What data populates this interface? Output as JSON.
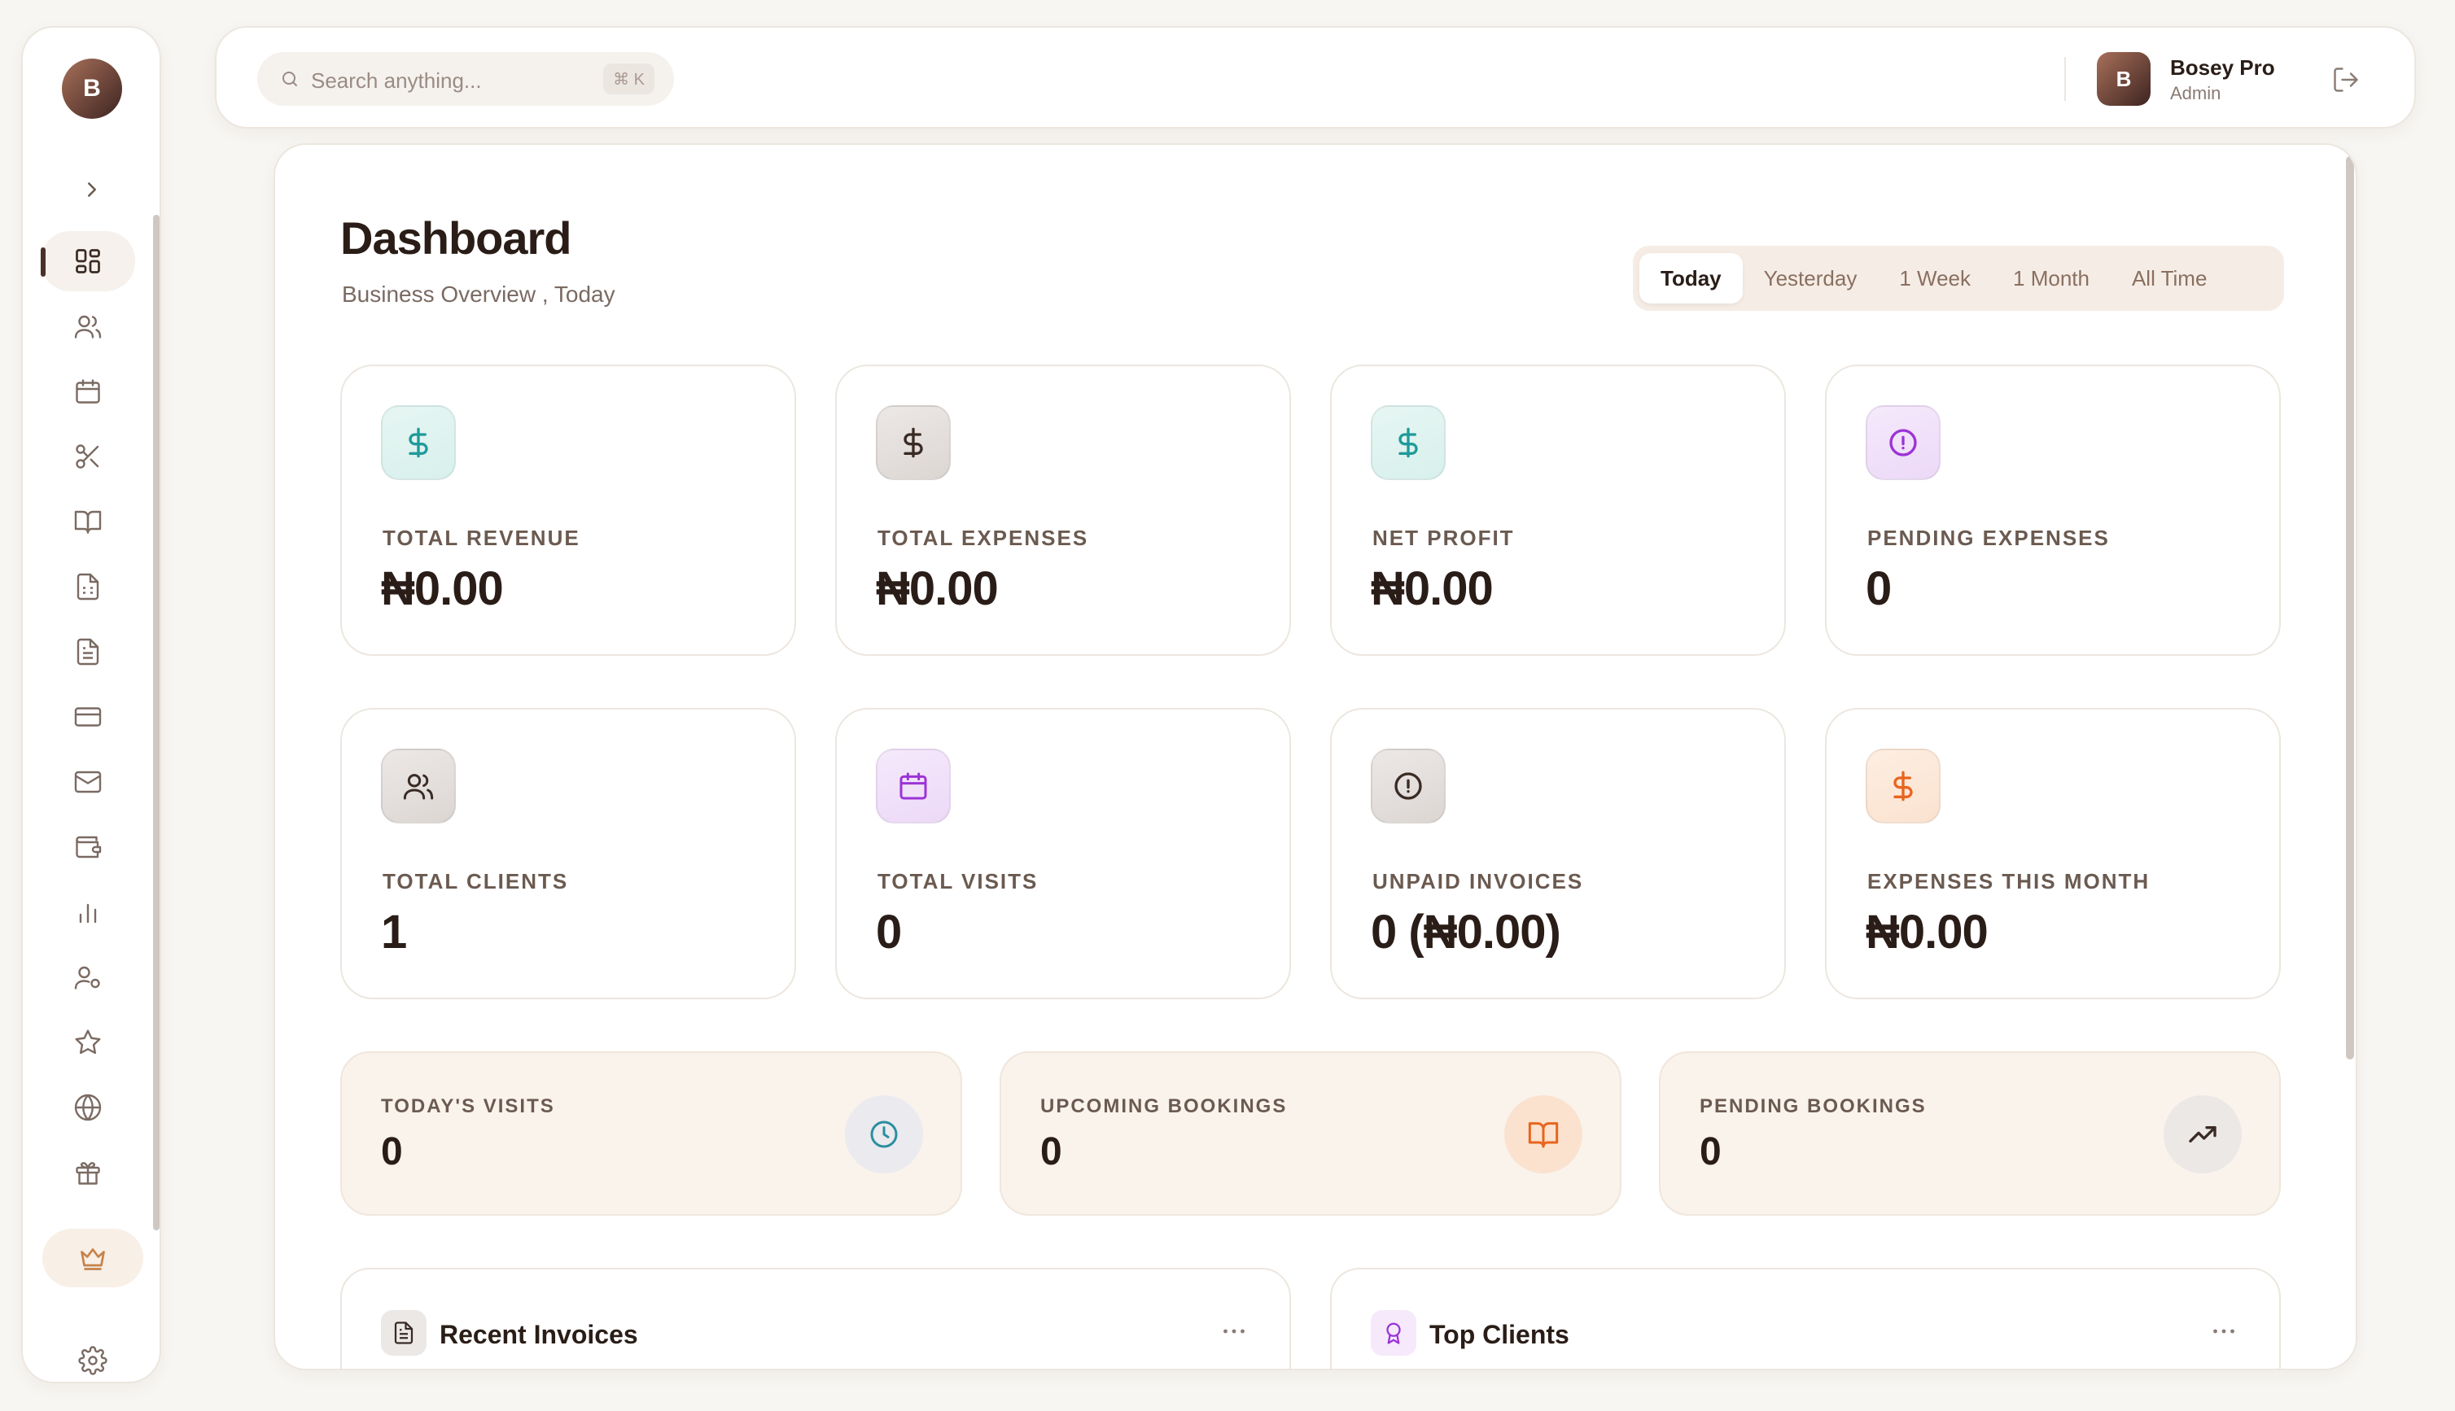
{
  "sidebar": {
    "avatar_initial": "B",
    "items": [
      {
        "name": "dashboard",
        "icon": "grid-icon",
        "active": true
      },
      {
        "name": "clients",
        "icon": "users-icon"
      },
      {
        "name": "calendar",
        "icon": "calendar-icon"
      },
      {
        "name": "services",
        "icon": "scissors-icon"
      },
      {
        "name": "bookings",
        "icon": "book-open-icon"
      },
      {
        "name": "invoices",
        "icon": "file-spreadsheet-icon"
      },
      {
        "name": "documents",
        "icon": "file-text-icon"
      },
      {
        "name": "payments",
        "icon": "credit-card-icon"
      },
      {
        "name": "messages",
        "icon": "mail-icon"
      },
      {
        "name": "wallet",
        "icon": "wallet-icon"
      },
      {
        "name": "reports",
        "icon": "bar-chart-icon"
      },
      {
        "name": "staff",
        "icon": "user-settings-icon"
      },
      {
        "name": "reviews",
        "icon": "star-icon"
      },
      {
        "name": "website",
        "icon": "globe-icon"
      },
      {
        "name": "gifts",
        "icon": "gift-icon"
      }
    ],
    "crown_icon": "crown-icon",
    "settings_icon": "gear-icon"
  },
  "topbar": {
    "search_placeholder": "Search anything...",
    "search_shortcut": "⌘ K",
    "user": {
      "initial": "B",
      "name": "Bosey Pro",
      "role": "Admin"
    }
  },
  "header": {
    "title": "Dashboard",
    "subtitle": "Business Overview , Today",
    "ranges": [
      "Today",
      "Yesterday",
      "1 Week",
      "1 Month",
      "All Time"
    ],
    "active_range": "Today"
  },
  "stats": [
    {
      "label": "TOTAL REVENUE",
      "value": "₦0.00",
      "icon": "dollar-icon",
      "color": "#1f9a9a"
    },
    {
      "label": "TOTAL EXPENSES",
      "value": "₦0.00",
      "icon": "dollar-icon",
      "color": "#3a2a24"
    },
    {
      "label": "NET PROFIT",
      "value": "₦0.00",
      "icon": "dollar-icon",
      "color": "#1f9a9a"
    },
    {
      "label": "PENDING EXPENSES",
      "value": "0",
      "icon": "alert-circle-icon",
      "color": "#9b33d6"
    },
    {
      "label": "TOTAL CLIENTS",
      "value": "1",
      "icon": "users-icon",
      "color": "#3a2a24"
    },
    {
      "label": "TOTAL VISITS",
      "value": "0",
      "icon": "calendar-icon",
      "color": "#9b33d6"
    },
    {
      "label": "UNPAID INVOICES",
      "value": "0 (₦0.00)",
      "icon": "alert-circle-icon",
      "color": "#3a2a24"
    },
    {
      "label": "EXPENSES THIS MONTH",
      "value": "₦0.00",
      "icon": "dollar-icon",
      "color": "#e8651e"
    }
  ],
  "mini_stats": [
    {
      "label": "TODAY'S VISITS",
      "value": "0",
      "icon": "clock-icon"
    },
    {
      "label": "UPCOMING BOOKINGS",
      "value": "0",
      "icon": "book-open-icon"
    },
    {
      "label": "PENDING BOOKINGS",
      "value": "0",
      "icon": "trending-up-icon"
    }
  ],
  "panels": [
    {
      "title": "Recent Invoices",
      "icon": "file-text-icon"
    },
    {
      "title": "Top Clients",
      "icon": "award-icon"
    }
  ]
}
